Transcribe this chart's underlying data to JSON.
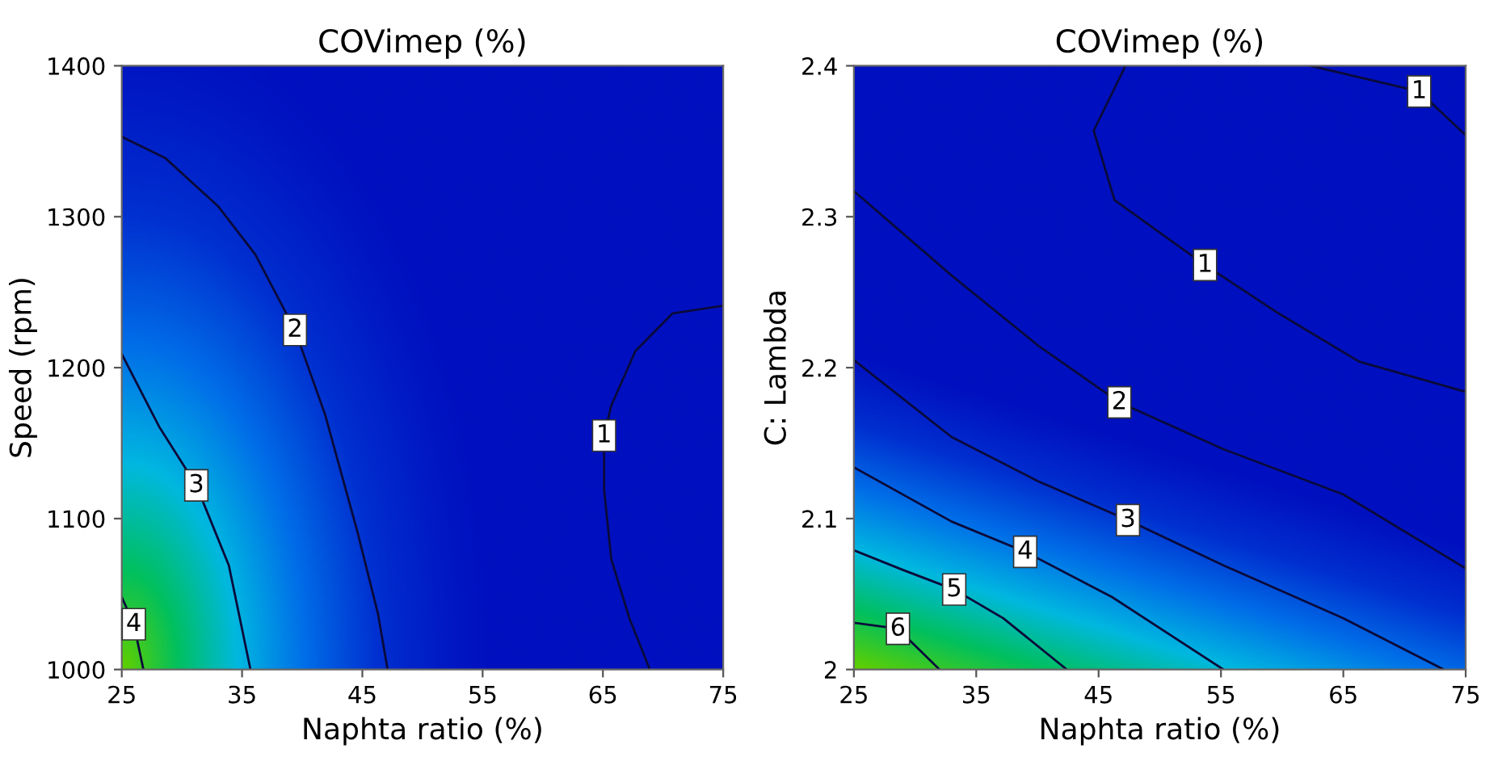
{
  "chart_data": [
    {
      "type": "line",
      "title": "COVimep (%)",
      "xlabel": "Naphta ratio (%)",
      "ylabel": "Speed (rpm)",
      "xlim": [
        25,
        75
      ],
      "ylim": [
        1000,
        1400
      ],
      "xticks": [
        25,
        35,
        45,
        55,
        65,
        75
      ],
      "yticks": [
        1000,
        1100,
        1200,
        1300,
        1400
      ],
      "grid": false,
      "legend": false,
      "series": [
        {
          "name": "1",
          "color": "#0a0a3a",
          "x": [
            75,
            70.8,
            67.7,
            65.7,
            65.1,
            65.1,
            65.7,
            67.2,
            68.9
          ],
          "values": [
            1241,
            1236,
            1211,
            1175,
            1155,
            1119,
            1073,
            1034,
            1000
          ]
        },
        {
          "name": "2",
          "color": "#0a0a3a",
          "x": [
            25,
            28.6,
            33,
            36.1,
            39.4,
            41.9,
            44.6,
            46.3,
            47.1
          ],
          "values": [
            1353,
            1339,
            1307,
            1275,
            1225,
            1169,
            1091,
            1037,
            1000
          ]
        },
        {
          "name": "3",
          "color": "#0a0a3a",
          "x": [
            25,
            28.1,
            31.2,
            33.9,
            35.7
          ],
          "values": [
            1209,
            1161,
            1122,
            1069,
            1000
          ]
        },
        {
          "name": "4",
          "color": "#0a0a3a",
          "x": [
            25,
            26,
            26.8
          ],
          "values": [
            1048,
            1030,
            1000
          ]
        }
      ]
    },
    {
      "type": "line",
      "title": "COVimep (%)",
      "xlabel": "Naphta ratio (%)",
      "ylabel": "C: Lambda",
      "xlim": [
        25,
        75
      ],
      "ylim": [
        2.0,
        2.4
      ],
      "xticks": [
        25,
        35,
        45,
        55,
        65,
        75
      ],
      "yticks": [
        {
          "value": 2.0,
          "label": "2"
        },
        2.1,
        2.2,
        2.3,
        2.4
      ],
      "grid": false,
      "legend": false,
      "series": [
        {
          "name": "1",
          "color": "#0a0a3a",
          "x": [
            47.2,
            44.6,
            46.3,
            53.7,
            59.7,
            66.3,
            75
          ],
          "values": [
            2.4,
            2.357,
            2.311,
            2.268,
            2.236,
            2.204,
            2.184
          ]
        },
        {
          "name": "1",
          "color": "#0a0a3a",
          "x": [
            62.3,
            71.2,
            75
          ],
          "values": [
            2.4,
            2.383,
            2.354
          ]
        },
        {
          "name": "2",
          "color": "#0a0a3a",
          "x": [
            25,
            33,
            40,
            46.7,
            55.2,
            65,
            75
          ],
          "values": [
            2.317,
            2.261,
            2.215,
            2.177,
            2.146,
            2.116,
            2.067
          ]
        },
        {
          "name": "3",
          "color": "#0a0a3a",
          "x": [
            25,
            33,
            40,
            47.4,
            55.2,
            65,
            73.2
          ],
          "values": [
            2.205,
            2.154,
            2.125,
            2.099,
            2.069,
            2.034,
            2.0
          ]
        },
        {
          "name": "4",
          "color": "#0a0a3a",
          "x": [
            25,
            33,
            39,
            46.1,
            55.2
          ],
          "values": [
            2.134,
            2.098,
            2.078,
            2.048,
            2.0
          ]
        },
        {
          "name": "5",
          "color": "#0a0a3a",
          "x": [
            25,
            29,
            33.2,
            37.2,
            42.4
          ],
          "values": [
            2.079,
            2.066,
            2.053,
            2.034,
            2.0
          ]
        },
        {
          "name": "6",
          "color": "#0a0a3a",
          "x": [
            25,
            28.6,
            32
          ],
          "values": [
            2.031,
            2.027,
            2.0
          ]
        }
      ]
    }
  ]
}
